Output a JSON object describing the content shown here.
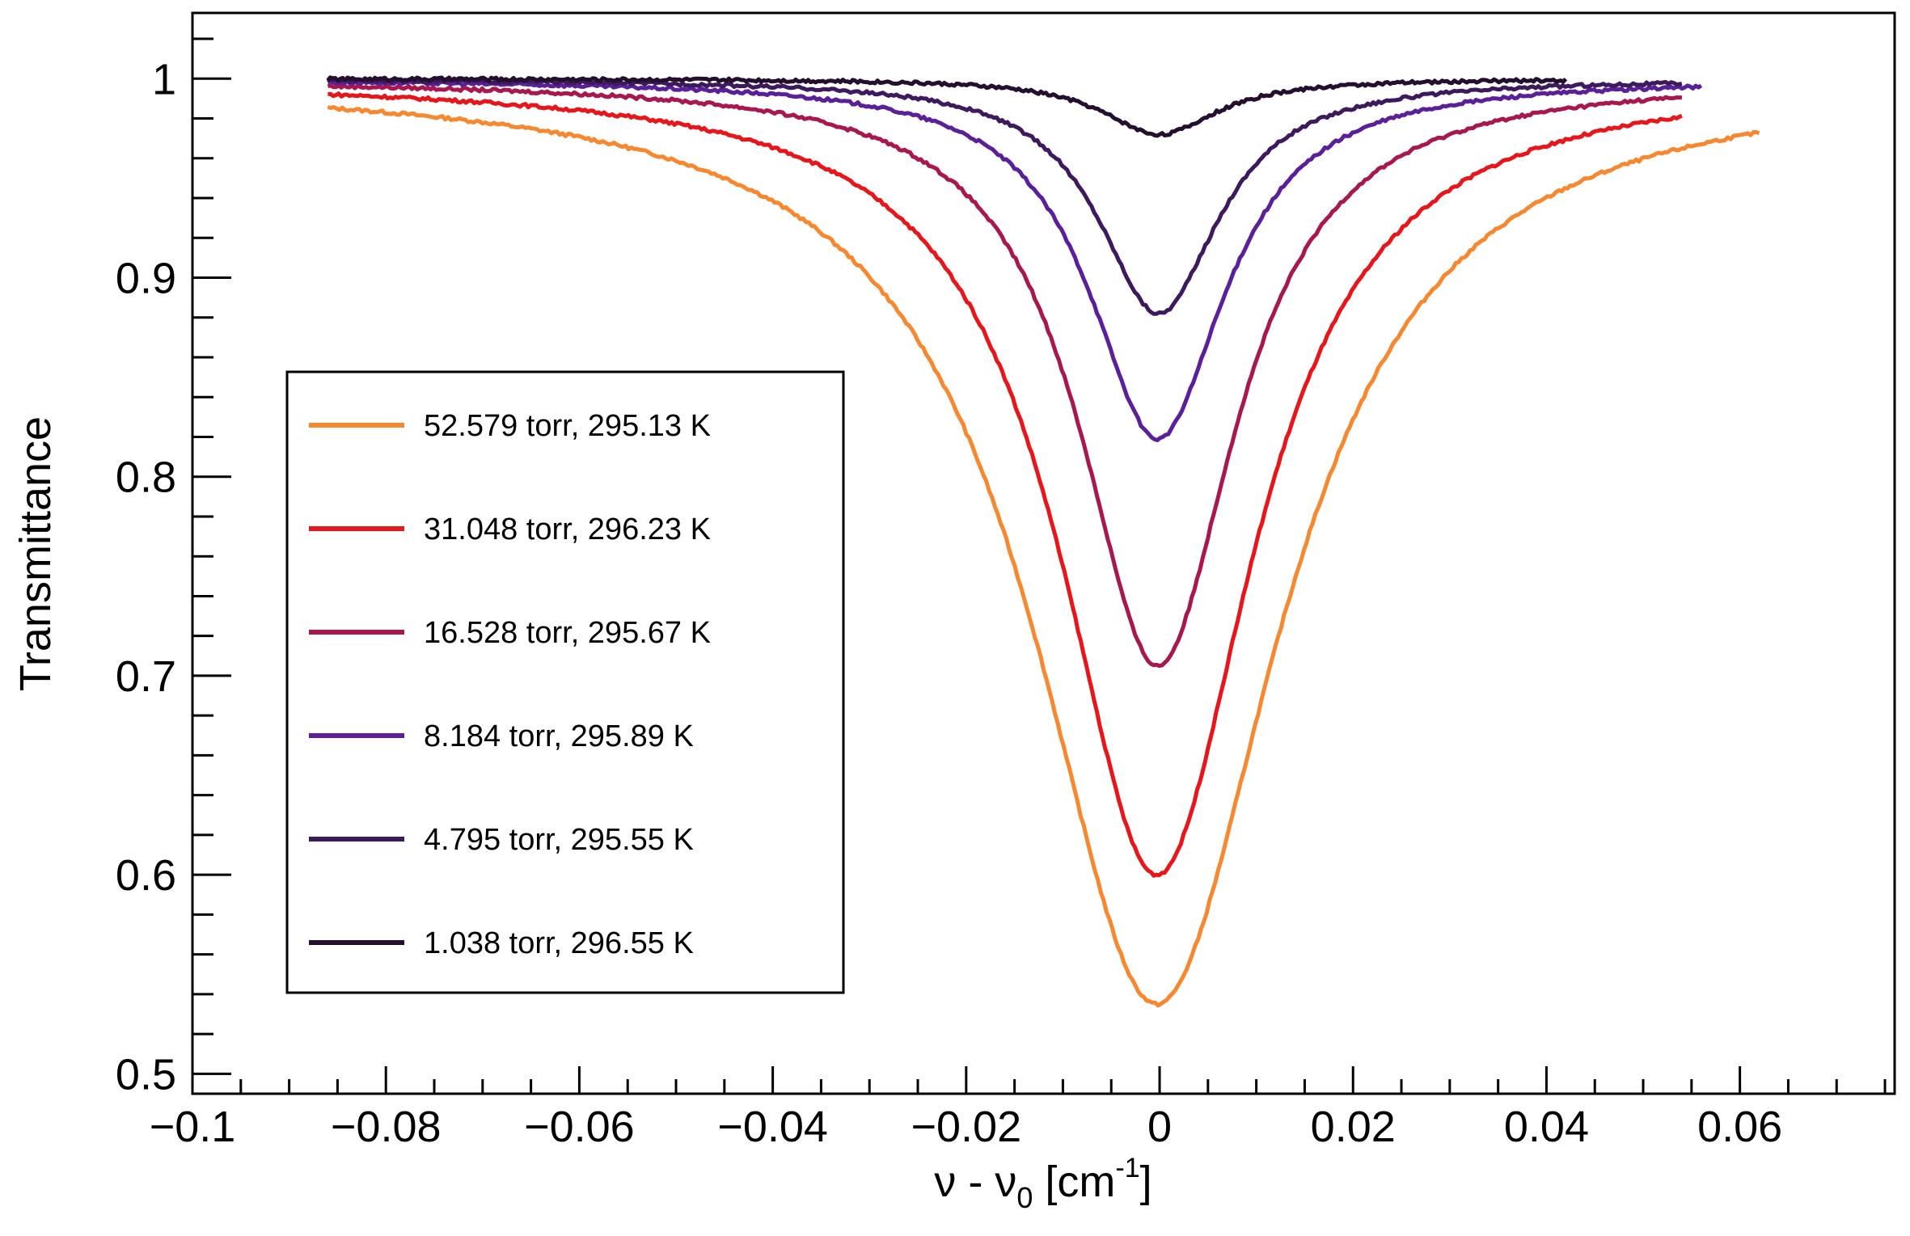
{
  "chart_data": {
    "type": "line",
    "title": "",
    "xlabel": {
      "main": "ν - ν",
      "sub": "0",
      "unit_open": " [cm",
      "sup": "-1",
      "unit_close": "]"
    },
    "ylabel": "Transmittance",
    "xlim": [
      -0.1,
      0.076
    ],
    "ylim": [
      0.49,
      1.033
    ],
    "x_ticks": [
      {
        "value": -0.1,
        "label": "−0.1"
      },
      {
        "value": -0.08,
        "label": "−0.08"
      },
      {
        "value": -0.06,
        "label": "−0.06"
      },
      {
        "value": -0.04,
        "label": "−0.04"
      },
      {
        "value": -0.02,
        "label": "−0.02"
      },
      {
        "value": 0,
        "label": "0"
      },
      {
        "value": 0.02,
        "label": "0.02"
      },
      {
        "value": 0.04,
        "label": "0.04"
      },
      {
        "value": 0.06,
        "label": "0.06"
      }
    ],
    "y_ticks": [
      {
        "value": 0.5,
        "label": "0.5"
      },
      {
        "value": 0.6,
        "label": "0.6"
      },
      {
        "value": 0.7,
        "label": "0.7"
      },
      {
        "value": 0.8,
        "label": "0.8"
      },
      {
        "value": 0.9,
        "label": "0.9"
      },
      {
        "value": 1.0,
        "label": "1"
      }
    ],
    "legend_position": "left",
    "series": [
      {
        "name": "52.579 torr, 295.13 K",
        "color": "#f7882f",
        "x_start": -0.086,
        "x_end": 0.062,
        "depth": 0.465,
        "hwhm": 0.0155,
        "center": -0.0003
      },
      {
        "name": "31.048 torr, 296.23 K",
        "color": "#e8161b",
        "x_start": -0.086,
        "x_end": 0.054,
        "depth": 0.4,
        "hwhm": 0.0122,
        "center": -0.0003
      },
      {
        "name": "16.528 torr, 295.67 K",
        "color": "#a8184f",
        "x_start": -0.086,
        "x_end": 0.054,
        "depth": 0.295,
        "hwhm": 0.0098,
        "center": -0.0002
      },
      {
        "name": "8.184 torr, 295.89 K",
        "color": "#5b2099",
        "x_start": -0.086,
        "x_end": 0.056,
        "depth": 0.181,
        "hwhm": 0.0085,
        "center": -0.0002
      },
      {
        "name": "4.795 torr, 295.55 K",
        "color": "#3d1a5e",
        "x_start": -0.086,
        "x_end": 0.054,
        "depth": 0.118,
        "hwhm": 0.0076,
        "center": -0.0001
      },
      {
        "name": "1.038 torr, 296.55 K",
        "color": "#24102e",
        "x_start": -0.086,
        "x_end": 0.042,
        "depth": 0.028,
        "hwhm": 0.0072,
        "center": 0.0
      }
    ]
  }
}
